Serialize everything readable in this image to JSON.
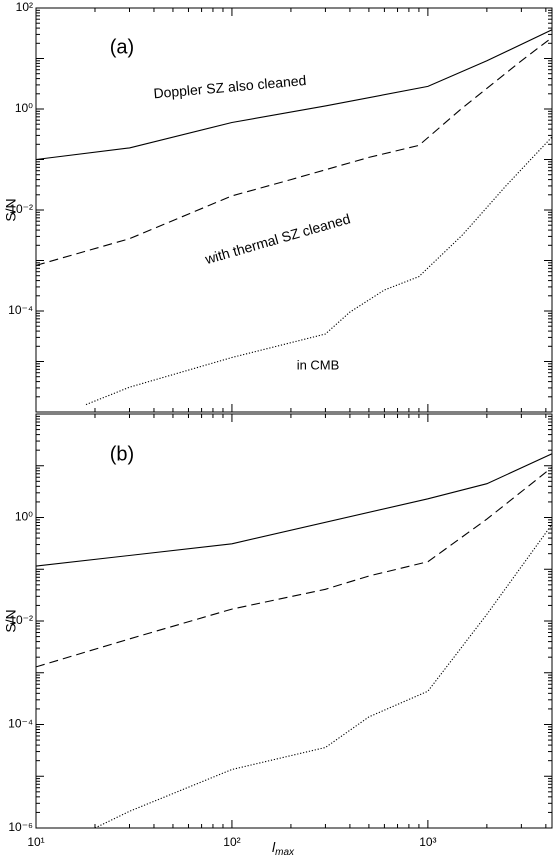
{
  "chart_data": [
    {
      "type": "line",
      "ylabel": "S/N",
      "log_x": true,
      "log_y": true,
      "xlim": [
        10,
        4300
      ],
      "ylim": [
        1e-06,
        100
      ],
      "yticks": [
        {
          "value": 100,
          "label": "10²"
        },
        {
          "value": 1,
          "label": "10⁰"
        },
        {
          "value": 0.01,
          "label": "10⁻²"
        },
        {
          "value": 0.0001,
          "label": "10⁻⁴"
        }
      ],
      "annotations": [
        "(a)",
        "Doppler SZ also cleaned",
        "with thermal SZ cleaned",
        "in CMB"
      ],
      "series": [
        {
          "color": "#000000",
          "dash": "solid",
          "x": [
            10,
            30,
            100,
            300,
            1000,
            2000,
            4300
          ],
          "values": [
            0.1,
            0.17,
            0.54,
            1.15,
            2.8,
            9,
            37
          ]
        },
        {
          "color": "#000000",
          "dash": "dashed",
          "x": [
            10,
            30,
            100,
            200,
            500,
            900,
            1500,
            3000,
            4300
          ],
          "values": [
            0.0008,
            0.0027,
            0.019,
            0.04,
            0.11,
            0.19,
            1.05,
            9,
            26
          ]
        },
        {
          "color": "#000000",
          "dash": "dotted",
          "x": [
            18,
            30,
            100,
            300,
            400,
            600,
            900,
            1500,
            2500,
            4300
          ],
          "values": [
            1.4e-06,
            3.1e-06,
            1.2e-05,
            3.5e-05,
            9.5e-05,
            0.00026,
            0.00048,
            0.0032,
            0.03,
            0.28
          ]
        }
      ]
    },
    {
      "type": "line",
      "ylabel": "S/N",
      "xlabel": "l",
      "xlabel_sub": "max",
      "log_x": true,
      "log_y": true,
      "xlim": [
        10,
        4300
      ],
      "ylim": [
        1e-06,
        100
      ],
      "xticks": [
        {
          "value": 10,
          "label": "10¹"
        },
        {
          "value": 100,
          "label": "10²"
        },
        {
          "value": 1000,
          "label": "10³"
        }
      ],
      "yticks": [
        {
          "value": 1,
          "label": "10⁰"
        },
        {
          "value": 0.01,
          "label": "10⁻²"
        },
        {
          "value": 0.0001,
          "label": "10⁻⁴"
        },
        {
          "value": 1e-06,
          "label": "10⁻⁶"
        }
      ],
      "annotations": [
        "(b)"
      ],
      "series": [
        {
          "color": "#000000",
          "dash": "solid",
          "x": [
            10,
            100,
            1000,
            2000,
            4300
          ],
          "values": [
            0.115,
            0.31,
            2.3,
            4.5,
            17
          ]
        },
        {
          "color": "#000000",
          "dash": "dashed",
          "x": [
            10,
            30,
            100,
            300,
            500,
            1000,
            2000,
            4300
          ],
          "values": [
            0.0013,
            0.0045,
            0.017,
            0.041,
            0.074,
            0.14,
            0.93,
            9.3
          ]
        },
        {
          "color": "#000000",
          "dash": "dotted",
          "x": [
            20,
            30,
            100,
            300,
            500,
            1000,
            2000,
            4300
          ],
          "values": [
            1e-06,
            2.1e-06,
            1.35e-05,
            3.6e-05,
            0.00014,
            0.00044,
            0.0135,
            0.74
          ]
        }
      ]
    }
  ]
}
